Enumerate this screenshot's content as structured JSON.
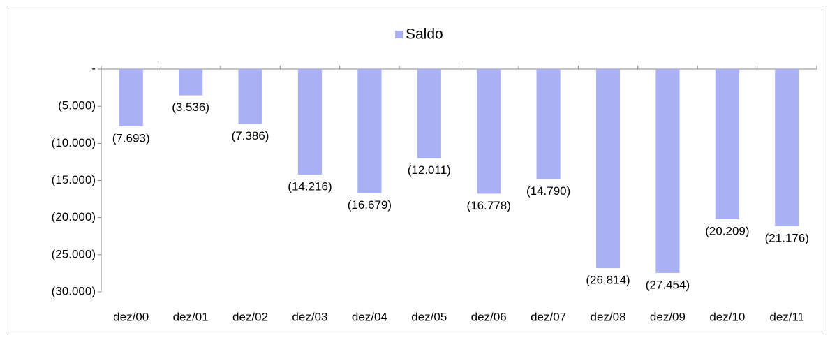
{
  "chart_data": {
    "type": "bar",
    "categories": [
      "dez/00",
      "dez/01",
      "dez/02",
      "dez/03",
      "dez/04",
      "dez/05",
      "dez/06",
      "dez/07",
      "dez/08",
      "dez/09",
      "dez/10",
      "dez/11"
    ],
    "series": [
      {
        "name": "Saldo",
        "color": "#aab0f4",
        "values": [
          -7693,
          -3536,
          -7386,
          -14216,
          -16679,
          -12011,
          -16778,
          -14790,
          -26814,
          -27454,
          -20209,
          -21176
        ],
        "value_labels": [
          "(7.693)",
          "(3.536)",
          "(7.386)",
          "(14.216)",
          "(16.679)",
          "(12.011)",
          "(16.778)",
          "(14.790)",
          "(26.814)",
          "(27.454)",
          "(20.209)",
          "(21.176)"
        ]
      }
    ],
    "ylim": [
      -30000,
      0
    ],
    "yticks": [
      {
        "value": 0,
        "label": "-"
      },
      {
        "value": -5000,
        "label": "(5.000)"
      },
      {
        "value": -10000,
        "label": "(10.000)"
      },
      {
        "value": -15000,
        "label": "(15.000)"
      },
      {
        "value": -20000,
        "label": "(20.000)"
      },
      {
        "value": -25000,
        "label": "(25.000)"
      },
      {
        "value": -30000,
        "label": "(30.000)"
      }
    ],
    "legend": "top"
  }
}
